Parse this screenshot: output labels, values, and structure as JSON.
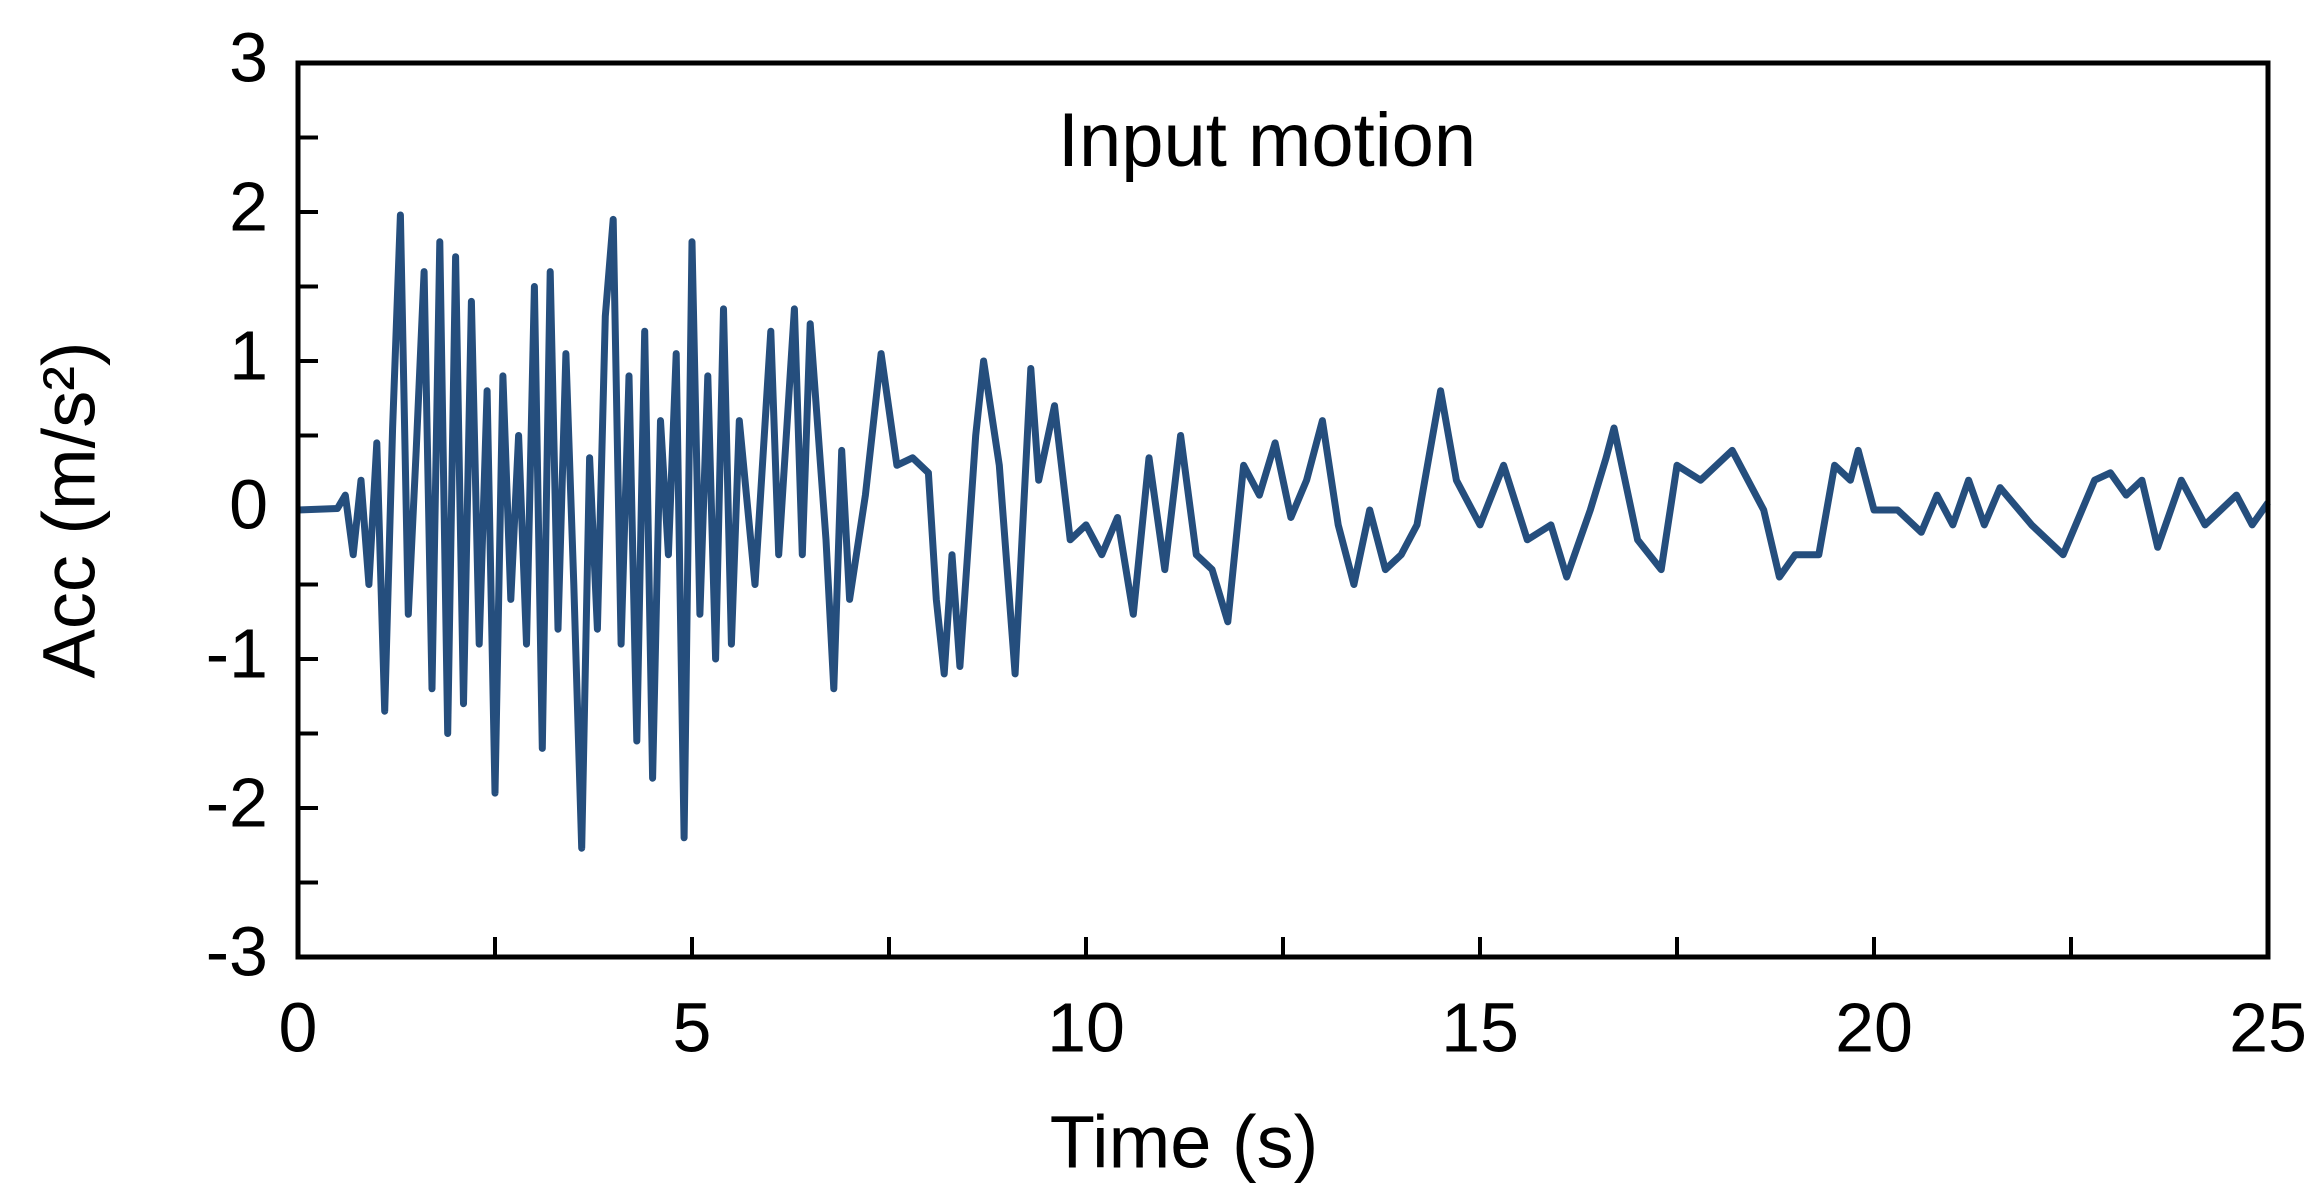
{
  "chart_data": {
    "type": "line",
    "annotation": "Input motion",
    "xlabel": "Time (s)",
    "ylabel": "Acc (m/s²)",
    "xlim": [
      0,
      25
    ],
    "xticks": [
      0,
      5,
      10,
      15,
      20,
      25
    ],
    "xminorticks": [
      2.5,
      7.5,
      12.5,
      17.5,
      22.5
    ],
    "ylim": [
      -3,
      3
    ],
    "yticks": [
      -3,
      -2,
      -1,
      0,
      1,
      2,
      3
    ],
    "yminorticks": [
      -2.5,
      -1.5,
      -0.5,
      0.5,
      1.5,
      2.5
    ],
    "grid": false,
    "series": [
      {
        "color": "#254e7d",
        "x": [
          0,
          0.5,
          0.6,
          0.7,
          0.8,
          0.9,
          1.0,
          1.1,
          1.2,
          1.3,
          1.4,
          1.5,
          1.6,
          1.7,
          1.8,
          1.9,
          2.0,
          2.1,
          2.2,
          2.3,
          2.4,
          2.5,
          2.6,
          2.7,
          2.8,
          2.9,
          3.0,
          3.1,
          3.2,
          3.3,
          3.4,
          3.5,
          3.6,
          3.7,
          3.8,
          3.9,
          4.0,
          4.1,
          4.2,
          4.3,
          4.4,
          4.5,
          4.6,
          4.7,
          4.8,
          4.9,
          5.0,
          5.1,
          5.2,
          5.3,
          5.4,
          5.5,
          5.6,
          5.8,
          6.0,
          6.1,
          6.3,
          6.4,
          6.5,
          6.7,
          6.8,
          6.9,
          7.0,
          7.2,
          7.4,
          7.6,
          7.8,
          8.0,
          8.1,
          8.2,
          8.3,
          8.4,
          8.6,
          8.7,
          8.9,
          9.0,
          9.1,
          9.3,
          9.4,
          9.6,
          9.8,
          10.0,
          10.2,
          10.4,
          10.6,
          10.8,
          11.0,
          11.2,
          11.4,
          11.6,
          11.8,
          12.0,
          12.2,
          12.4,
          12.6,
          12.8,
          13.0,
          13.2,
          13.4,
          13.6,
          13.8,
          14.0,
          14.2,
          14.4,
          14.5,
          14.7,
          15.0,
          15.3,
          15.6,
          15.9,
          16.1,
          16.4,
          16.6,
          16.7,
          17.0,
          17.3,
          17.5,
          17.8,
          18.2,
          18.6,
          18.8,
          19.0,
          19.3,
          19.5,
          19.7,
          19.8,
          20.0,
          20.3,
          20.6,
          20.8,
          21.0,
          21.2,
          21.4,
          21.6,
          22.0,
          22.4,
          22.8,
          23.0,
          23.2,
          23.4,
          23.6,
          23.9,
          24.2,
          24.6,
          24.8,
          25.0
        ],
        "values": [
          0,
          0.01,
          0.1,
          -0.3,
          0.2,
          -0.5,
          0.45,
          -1.35,
          0.55,
          1.98,
          -0.7,
          0.4,
          1.6,
          -1.2,
          1.8,
          -1.5,
          1.7,
          -1.3,
          1.4,
          -0.9,
          0.8,
          -1.9,
          0.9,
          -0.6,
          0.5,
          -0.9,
          1.5,
          -1.6,
          1.6,
          -0.8,
          1.05,
          -0.5,
          -2.27,
          0.35,
          -0.8,
          1.3,
          1.95,
          -0.9,
          0.9,
          -1.55,
          1.2,
          -1.8,
          0.6,
          -0.3,
          1.05,
          -2.2,
          1.8,
          -0.7,
          0.9,
          -1.0,
          1.35,
          -0.9,
          0.6,
          -0.5,
          1.2,
          -0.3,
          1.35,
          -0.3,
          1.25,
          -0.2,
          -1.2,
          0.4,
          -0.6,
          0.1,
          1.05,
          0.3,
          0.35,
          0.25,
          -0.6,
          -1.1,
          -0.3,
          -1.05,
          0.5,
          1.0,
          0.3,
          -0.4,
          -1.1,
          0.95,
          0.2,
          0.7,
          -0.2,
          -0.1,
          -0.3,
          -0.05,
          -0.7,
          0.35,
          -0.4,
          0.5,
          -0.3,
          -0.4,
          -0.75,
          0.3,
          0.1,
          0.45,
          -0.05,
          0.2,
          0.6,
          -0.1,
          -0.5,
          0.0,
          -0.4,
          -0.3,
          -0.1,
          0.5,
          0.8,
          0.2,
          -0.1,
          0.3,
          -0.2,
          -0.1,
          -0.45,
          0.0,
          0.35,
          0.55,
          -0.2,
          -0.4,
          0.3,
          0.2,
          0.4,
          0.0,
          -0.45,
          -0.3,
          -0.3,
          0.3,
          0.2,
          0.4,
          0.0,
          0.0,
          -0.15,
          0.1,
          -0.1,
          0.2,
          -0.1,
          0.15,
          -0.1,
          -0.3,
          0.2,
          0.25,
          0.1,
          0.2,
          -0.25,
          0.2,
          -0.1,
          0.1,
          -0.1,
          0.05
        ]
      }
    ]
  }
}
